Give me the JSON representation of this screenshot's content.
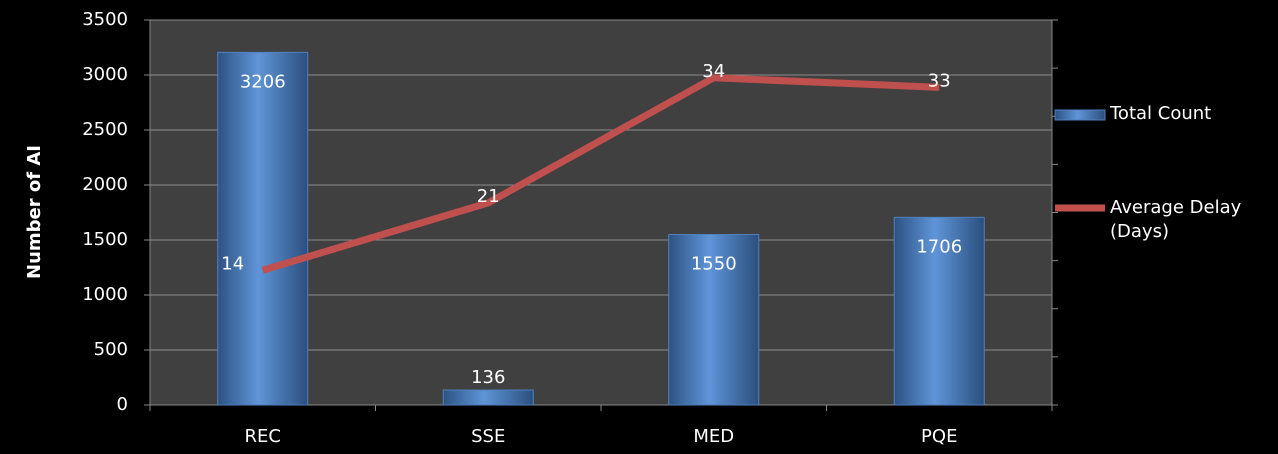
{
  "chart_data": {
    "type": "bar_line",
    "y_label": "Number of AI",
    "categories": [
      "REC",
      "SSE",
      "MED",
      "PQE"
    ],
    "series": [
      {
        "name": "Total Count",
        "type": "bar",
        "color": "#4f81bd",
        "values": [
          3206,
          136,
          1550,
          1706
        ]
      },
      {
        "name": "Average Delay (Days)",
        "type": "line",
        "color": "#c0504d",
        "axis": "y2",
        "values": [
          14,
          21,
          34,
          33
        ]
      }
    ],
    "ylim": [
      0,
      3500
    ],
    "yticks": [
      0,
      500,
      1000,
      1500,
      2000,
      2500,
      3000,
      3500
    ],
    "y2lim": [
      0,
      40
    ],
    "y2ticks": [
      0,
      5,
      10,
      15,
      20,
      25,
      30,
      35,
      40
    ],
    "grid": true,
    "legend": "right"
  }
}
